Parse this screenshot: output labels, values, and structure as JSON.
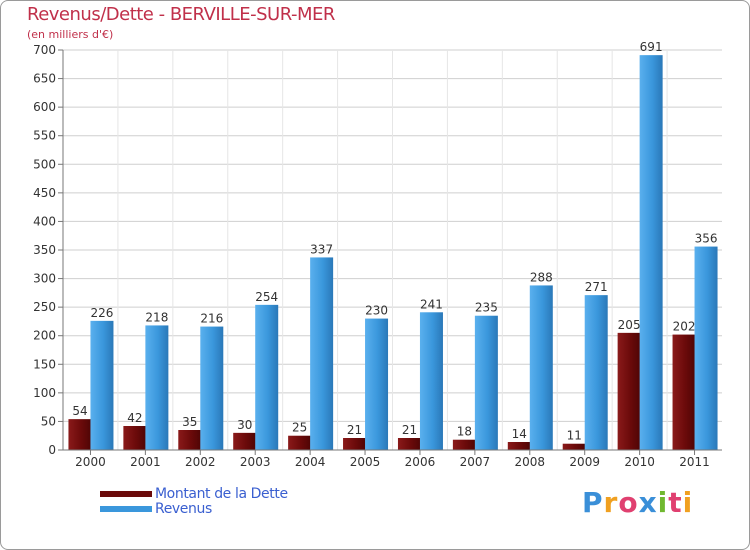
{
  "header": {
    "title": "Revenus/Dette - BERVILLE-SUR-MER",
    "subtitle": "(en milliers d'€)"
  },
  "legend": {
    "items": [
      {
        "label": "Montant de la Dette",
        "color": "#6b0a0a"
      },
      {
        "label": "Revenus",
        "color": "#3a97dc"
      }
    ]
  },
  "logo": {
    "letters": [
      {
        "ch": "P",
        "color": "#3a8fd8"
      },
      {
        "ch": "r",
        "color": "#f0a020"
      },
      {
        "ch": "o",
        "color": "#e04070"
      },
      {
        "ch": "x",
        "color": "#3a8fd8"
      },
      {
        "ch": "i",
        "color": "#70b830"
      },
      {
        "ch": "t",
        "color": "#e04070"
      },
      {
        "ch": "i",
        "color": "#f0a020"
      }
    ]
  },
  "chart_data": {
    "type": "bar",
    "title": "Revenus/Dette - BERVILLE-SUR-MER",
    "subtitle": "(en milliers d'€)",
    "categories": [
      "2000",
      "2001",
      "2002",
      "2003",
      "2004",
      "2005",
      "2006",
      "2007",
      "2008",
      "2009",
      "2010",
      "2011"
    ],
    "series": [
      {
        "name": "Montant de la Dette",
        "color": "#6b0a0a",
        "values": [
          54,
          42,
          35,
          30,
          25,
          21,
          21,
          18,
          14,
          11,
          205,
          202
        ]
      },
      {
        "name": "Revenus",
        "color": "#3a97dc",
        "values": [
          226,
          218,
          216,
          254,
          337,
          230,
          241,
          235,
          288,
          271,
          691,
          356
        ]
      }
    ],
    "ylim": [
      0,
      700
    ],
    "yticks": [
      0,
      50,
      100,
      150,
      200,
      250,
      300,
      350,
      400,
      450,
      500,
      550,
      600,
      650,
      700
    ],
    "grid": true,
    "legend_position": "bottom-left"
  }
}
